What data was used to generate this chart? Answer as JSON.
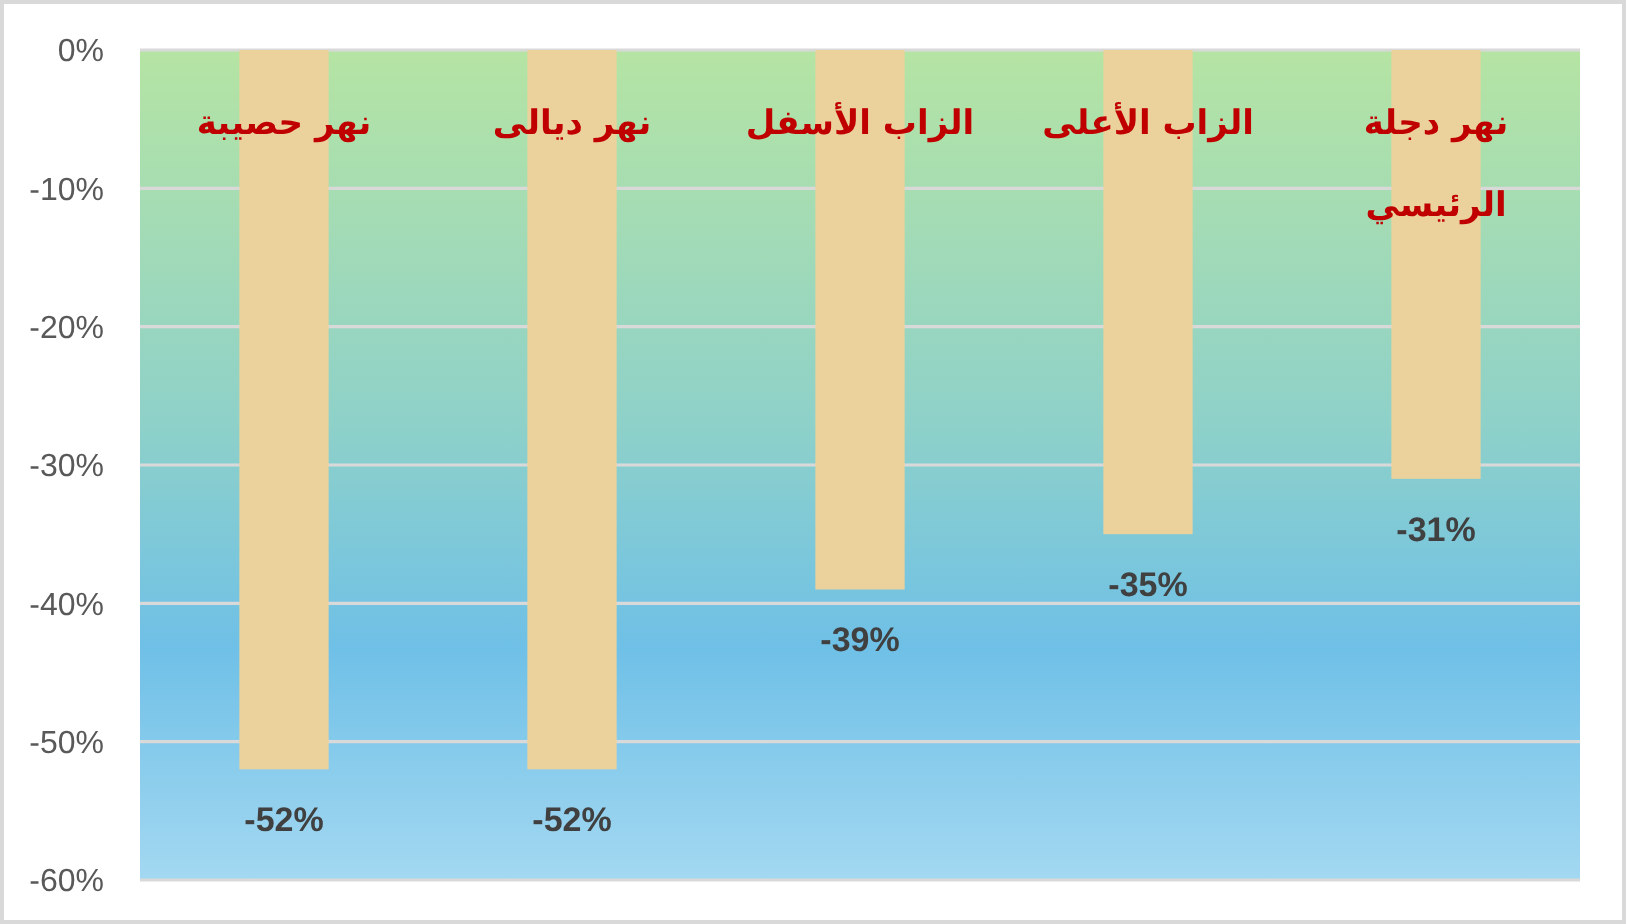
{
  "chart_data": {
    "type": "bar",
    "categories": [
      "نهر حصيبة",
      "نهر ديالى",
      "الزاب الأسفل",
      "الزاب الأعلى",
      "نهر دجلة الرئيسي"
    ],
    "values": [
      -52,
      -52,
      -39,
      -35,
      -31
    ],
    "value_labels": [
      "-52%",
      "-52%",
      "-39%",
      "-35%",
      "-31%"
    ],
    "color": "#ebd29c",
    "ylim": [
      -60,
      0
    ],
    "yticks": [
      {
        "value": 0,
        "label": "0%"
      },
      {
        "value": -10,
        "label": "-10%"
      },
      {
        "value": -20,
        "label": "-20%"
      },
      {
        "value": -30,
        "label": "-30%"
      },
      {
        "value": -40,
        "label": "-40%"
      },
      {
        "value": -50,
        "label": "-50%"
      },
      {
        "value": -60,
        "label": "-60%"
      }
    ],
    "grid": "y"
  }
}
